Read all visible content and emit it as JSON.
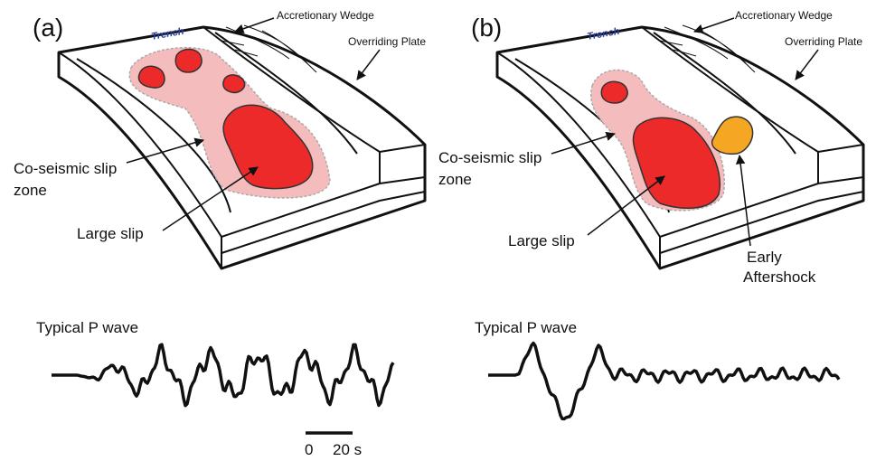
{
  "panels": [
    {
      "label": "(a)",
      "trench": "Trench",
      "wedge": "Accretionary Wedge",
      "plate": "Overriding Plate",
      "slip_zone": [
        "Co-seismic slip",
        "zone"
      ],
      "large_slip": "Large slip",
      "wave_title": "Typical P wave"
    },
    {
      "label": "(b)",
      "trench": "Trench",
      "wedge": "Accretionary Wedge",
      "plate": "Overriding Plate",
      "slip_zone": [
        "Co-seismic slip",
        "zone"
      ],
      "large_slip": "Large slip",
      "aftershock": [
        "Early",
        "Aftershock"
      ],
      "wave_title": "Typical P wave"
    }
  ],
  "scale_bar": {
    "start": "0",
    "end": "20 s"
  }
}
